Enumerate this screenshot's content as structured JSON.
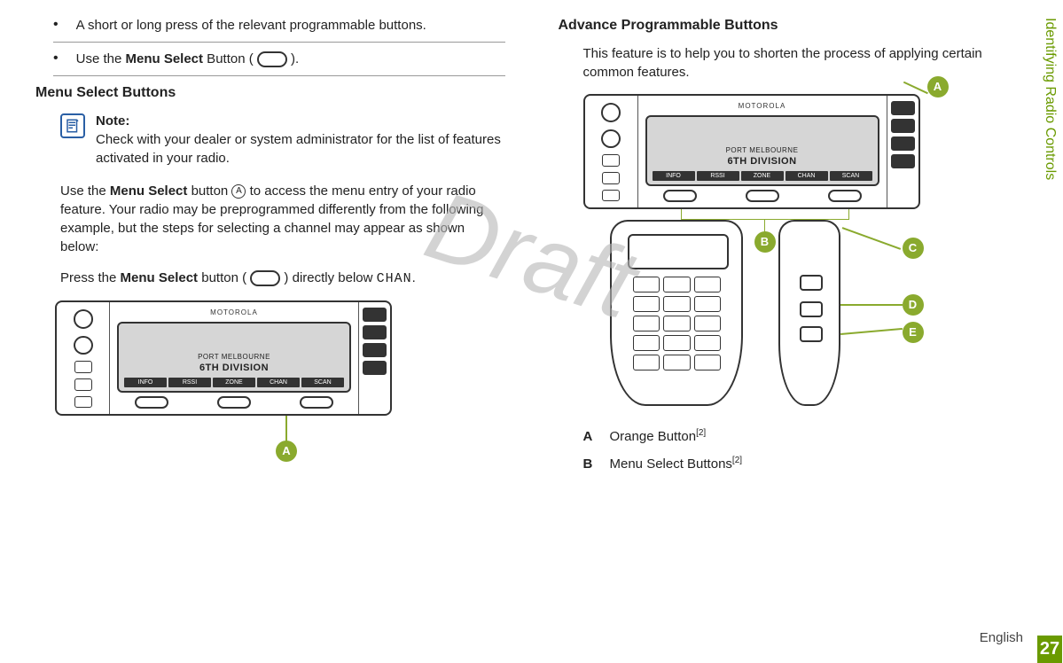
{
  "left": {
    "bullets": [
      "A short or long press of the relevant programmable buttons.",
      "Use the <b>Menu Select</b> Button ( <span class=\"oval-btn\"></span> )."
    ],
    "heading": "Menu Select Buttons",
    "note_label": "Note:",
    "note_body": "Check with your dealer or system administrator for the list of features activated in your radio.",
    "para1": "Use the <b>Menu Select</b> button <span class=\"circled-a\">A</span> to access the menu entry of your radio feature. Your radio may be preprogrammed differently from the following example, but the steps for selecting a channel may appear as shown below:",
    "para2": "Press the <b>Menu Select</b> button ( <span class=\"oval-btn\"></span> ) directly below <span class=\"chan\">CHAN</span>.",
    "callout_a": "A"
  },
  "right": {
    "heading": "Advance Programmable Buttons",
    "para": "This feature is to help you to shorten the process of applying certain common features.",
    "callouts": {
      "a": "A",
      "b": "B",
      "c": "C",
      "d": "D",
      "e": "E"
    },
    "legend": [
      {
        "key": "A",
        "val": "Orange Button",
        "sup": "[2]"
      },
      {
        "key": "B",
        "val": "Menu Select Buttons",
        "sup": "[2]"
      }
    ]
  },
  "device": {
    "logo": "MOTOROLA",
    "lcd_line1": "PORT MELBOURNE",
    "lcd_line2": "6TH DIVISION",
    "softkeys": [
      "INFO",
      "RSSI",
      "ZONE",
      "CHAN",
      "SCAN"
    ]
  },
  "watermark": "Draft",
  "side_title": "Identifying Radio Controls",
  "page_number": "27",
  "language": "English",
  "colors": {
    "accent": "#6a9a00",
    "callout": "#8aaa2e",
    "note_border": "#2a5fa5"
  }
}
